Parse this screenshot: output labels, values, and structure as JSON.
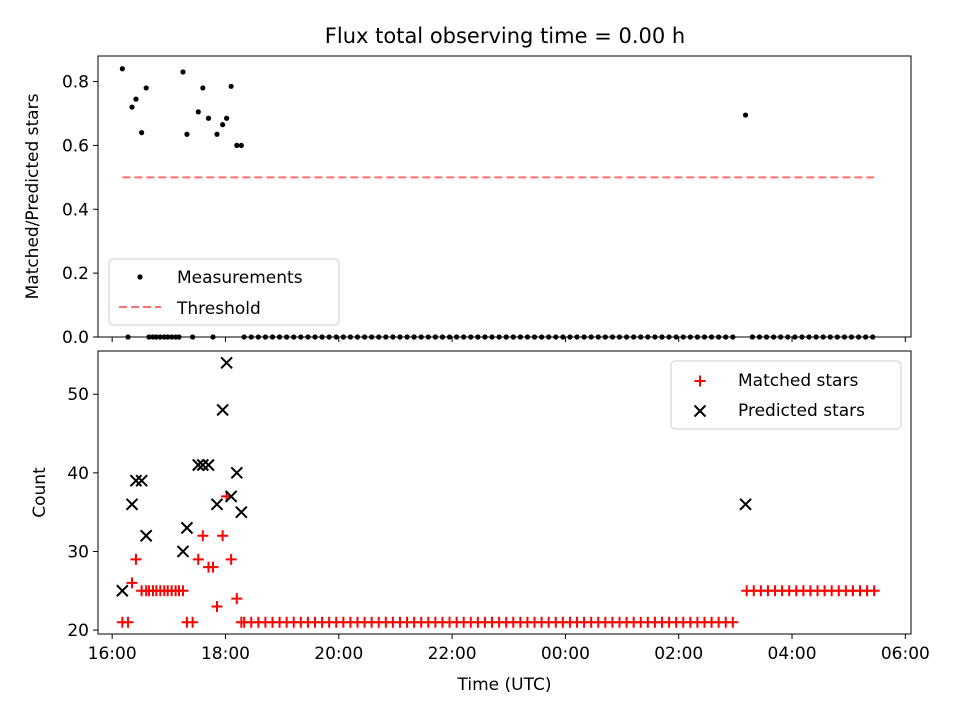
{
  "title": "Flux total observing time = 0.00 h",
  "chart_data": [
    {
      "type": "scatter",
      "panel": "top",
      "ylabel": "Matched/Predicted stars",
      "ylim": [
        0,
        0.88
      ],
      "yticks": [
        0.0,
        0.2,
        0.4,
        0.6,
        0.8
      ],
      "ytick_labels": [
        "0.0",
        "0.2",
        "0.4",
        "0.6",
        "0.8"
      ],
      "legend_position": "lower-left",
      "series": [
        {
          "name": "Measurements",
          "color": "#000000",
          "marker": "dot",
          "points": [
            [
              16.18,
              0.84
            ],
            [
              16.28,
              0.0
            ],
            [
              16.35,
              0.72
            ],
            [
              16.42,
              0.745
            ],
            [
              16.52,
              0.64
            ],
            [
              16.6,
              0.78
            ],
            [
              16.65,
              0.0
            ],
            [
              16.72,
              0.0
            ],
            [
              16.78,
              0.0
            ],
            [
              16.85,
              0.0
            ],
            [
              16.92,
              0.0
            ],
            [
              16.98,
              0.0
            ],
            [
              17.05,
              0.0
            ],
            [
              17.12,
              0.0
            ],
            [
              17.18,
              0.0
            ],
            [
              17.25,
              0.83
            ],
            [
              17.32,
              0.635
            ],
            [
              17.42,
              0.0
            ],
            [
              17.52,
              0.705
            ],
            [
              17.6,
              0.78
            ],
            [
              17.7,
              0.685
            ],
            [
              17.78,
              0.0
            ],
            [
              17.85,
              0.635
            ],
            [
              17.95,
              0.665
            ],
            [
              18.02,
              0.685
            ],
            [
              18.1,
              0.785
            ],
            [
              18.2,
              0.6
            ],
            [
              18.28,
              0.6
            ],
            [
              27.18,
              0.695
            ]
          ]
        },
        {
          "name": "Threshold",
          "color": "#ff7070",
          "style": "dashed",
          "x": [
            16.18,
            29.45
          ],
          "y": [
            0.5,
            0.5
          ]
        }
      ],
      "zero_run": [
        [
          18.33,
          27.05
        ],
        [
          27.3,
          29.45
        ]
      ]
    },
    {
      "type": "scatter",
      "panel": "bottom",
      "xlabel": "Time (UTC)",
      "ylabel": "Count",
      "ylim": [
        19.5,
        55.5
      ],
      "yticks": [
        20,
        30,
        40,
        50
      ],
      "ytick_labels": [
        "20",
        "30",
        "40",
        "50"
      ],
      "xlim": [
        15.75,
        30.1
      ],
      "xticks": [
        16,
        18,
        20,
        22,
        24,
        26,
        28,
        30
      ],
      "xtick_labels": [
        "16:00",
        "18:00",
        "20:00",
        "22:00",
        "00:00",
        "02:00",
        "04:00",
        "06:00"
      ],
      "legend_position": "top-right",
      "series": [
        {
          "name": "Matched stars",
          "color": "#ff0000",
          "marker": "plus",
          "points": [
            [
              16.18,
              21
            ],
            [
              16.28,
              21
            ],
            [
              16.35,
              26
            ],
            [
              16.42,
              29
            ],
            [
              16.52,
              25
            ],
            [
              16.6,
              25
            ],
            [
              16.65,
              25
            ],
            [
              16.72,
              25
            ],
            [
              16.78,
              25
            ],
            [
              16.85,
              25
            ],
            [
              16.92,
              25
            ],
            [
              16.98,
              25
            ],
            [
              17.05,
              25
            ],
            [
              17.12,
              25
            ],
            [
              17.18,
              25
            ],
            [
              17.25,
              25
            ],
            [
              17.32,
              21
            ],
            [
              17.42,
              21
            ],
            [
              17.52,
              29
            ],
            [
              17.6,
              32
            ],
            [
              17.7,
              28
            ],
            [
              17.78,
              28
            ],
            [
              17.85,
              23
            ],
            [
              17.95,
              32
            ],
            [
              18.02,
              37
            ],
            [
              18.1,
              29
            ],
            [
              18.2,
              24
            ],
            [
              18.28,
              21
            ]
          ],
          "runs": [
            {
              "start": 18.33,
              "end": 27.05,
              "value": 21
            },
            {
              "start": 27.2,
              "end": 29.45,
              "value": 25
            }
          ]
        },
        {
          "name": "Predicted stars",
          "color": "#000000",
          "marker": "x",
          "points": [
            [
              16.18,
              25
            ],
            [
              16.35,
              36
            ],
            [
              16.42,
              39
            ],
            [
              16.52,
              39
            ],
            [
              16.6,
              32
            ],
            [
              17.25,
              30
            ],
            [
              17.32,
              33
            ],
            [
              17.52,
              41
            ],
            [
              17.6,
              41
            ],
            [
              17.7,
              41
            ],
            [
              17.85,
              36
            ],
            [
              17.95,
              48
            ],
            [
              18.02,
              54
            ],
            [
              18.1,
              37
            ],
            [
              18.2,
              40
            ],
            [
              18.28,
              35
            ],
            [
              27.18,
              36
            ]
          ]
        }
      ]
    }
  ]
}
